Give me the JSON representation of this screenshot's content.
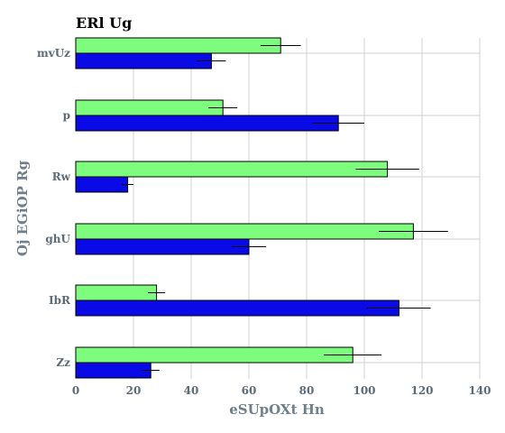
{
  "chart_data": {
    "type": "bar",
    "orientation": "horizontal",
    "title": "ERl Ug",
    "xlabel": "eSUpOXt Hn",
    "ylabel": "Oj EGiOP Rg",
    "categories": [
      "mvUz",
      "p",
      "Rw",
      "ghU",
      "IbR",
      "Zz"
    ],
    "xlim": [
      0,
      140
    ],
    "xticks": [
      0,
      20,
      40,
      60,
      80,
      100,
      120,
      140
    ],
    "grid": true,
    "legend": "none",
    "series": [
      {
        "color": "#7dfc7d",
        "values": [
          71,
          51,
          108,
          117,
          28,
          96
        ],
        "errors": [
          7,
          5,
          11,
          12,
          3,
          10
        ]
      },
      {
        "color": "#0a0ae6",
        "values": [
          47,
          91,
          18,
          60,
          112,
          26
        ],
        "errors": [
          5,
          9,
          2,
          6,
          11,
          3
        ]
      }
    ]
  }
}
